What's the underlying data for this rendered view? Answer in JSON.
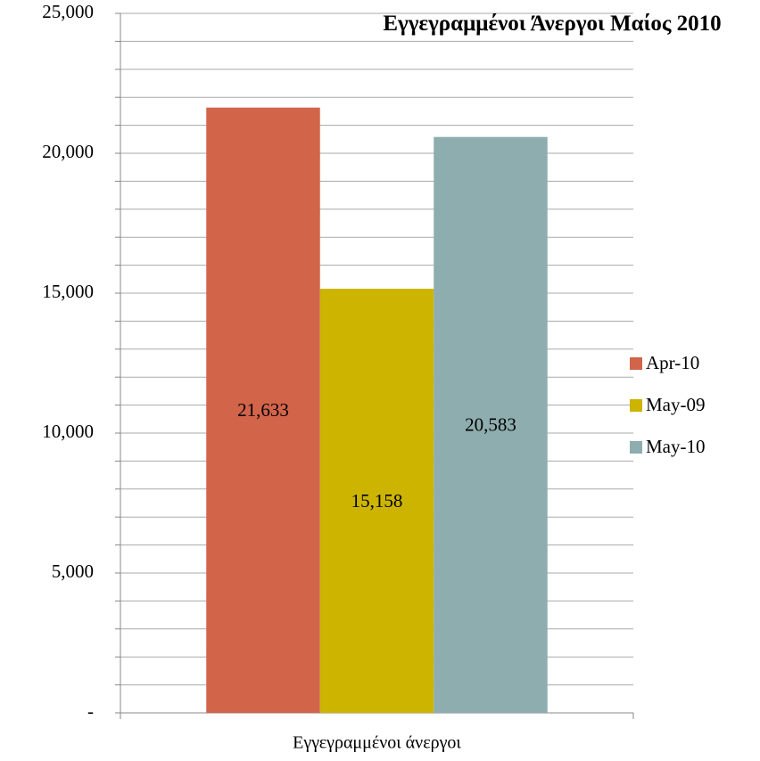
{
  "chart_data": {
    "type": "bar",
    "title": "Εγγεγραμμένοι Άνεργοι Μαίος 2010",
    "categories": [
      "Εγγεγραμμένοι άνεργοι"
    ],
    "series": [
      {
        "name": "Apr-10",
        "color": "#d2644a",
        "values": [
          21633
        ],
        "value_labels": [
          "21,633"
        ]
      },
      {
        "name": "May-09",
        "color": "#ccb400",
        "values": [
          15158
        ],
        "value_labels": [
          "15,158"
        ]
      },
      {
        "name": "May-10",
        "color": "#8eadae",
        "values": [
          20583
        ],
        "value_labels": [
          "20,583"
        ]
      }
    ],
    "ylim": [
      0,
      25000
    ],
    "yticks": [
      {
        "value": 0,
        "label": "-"
      },
      {
        "value": 5000,
        "label": "5,000"
      },
      {
        "value": 10000,
        "label": "10,000"
      },
      {
        "value": 15000,
        "label": "15,000"
      },
      {
        "value": 20000,
        "label": "20,000"
      },
      {
        "value": 25000,
        "label": "25,000"
      }
    ],
    "yminor": [
      1000,
      2000,
      3000,
      4000,
      6000,
      7000,
      8000,
      9000,
      11000,
      12000,
      13000,
      14000,
      16000,
      17000,
      18000,
      19000,
      21000,
      22000,
      23000,
      24000
    ],
    "grid": true,
    "legend": "right"
  }
}
